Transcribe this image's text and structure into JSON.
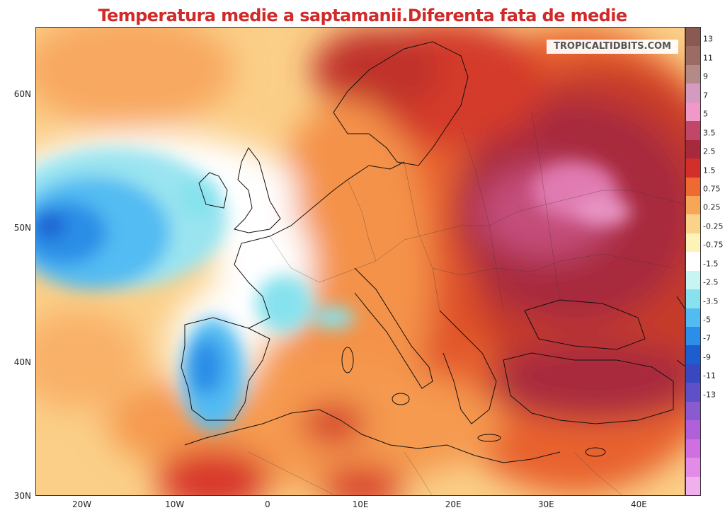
{
  "title": "Temperatura medie a saptamanii.Diferenta fata de medie",
  "watermark": "TROPICALTIDBITS.COM",
  "lat_ticks": [
    {
      "label": "60N",
      "lat": 60
    },
    {
      "label": "50N",
      "lat": 50
    },
    {
      "label": "40N",
      "lat": 40
    },
    {
      "label": "30N",
      "lat": 30
    }
  ],
  "lon_ticks": [
    {
      "label": "20W",
      "lon": -20
    },
    {
      "label": "10W",
      "lon": -10
    },
    {
      "label": "0",
      "lon": 0
    },
    {
      "label": "10E",
      "lon": 10
    },
    {
      "label": "20E",
      "lon": 20
    },
    {
      "label": "30E",
      "lon": 30
    },
    {
      "label": "40E",
      "lon": 40
    }
  ],
  "map_extent": {
    "lon_min": -25,
    "lon_max": 45,
    "lat_min": 30,
    "lat_max": 65
  },
  "colorbar": {
    "levels": [
      "13",
      "11",
      "9",
      "7",
      "5",
      "3.5",
      "2.5",
      "1.5",
      "0.75",
      "0.25",
      "-0.25",
      "-0.75",
      "-1.5",
      "-2.5",
      "-3.5",
      "-5",
      "-7",
      "-9",
      "-11",
      "-13"
    ],
    "colors": [
      "#8a5a52",
      "#9c6c64",
      "#b48a88",
      "#d49ac0",
      "#f098c8",
      "#c0466a",
      "#a8283c",
      "#d42e2a",
      "#ee6a32",
      "#f7a658",
      "#fbd28a",
      "#fdf3b6",
      "#ffffff",
      "#c8f4f4",
      "#86e2ee",
      "#52bcf2",
      "#2c8ee6",
      "#1c5ed0",
      "#3848c0",
      "#6050c8",
      "#8a5ad0",
      "#b060d8",
      "#d070e0",
      "#e48ae8",
      "#f0b0ec"
    ]
  }
}
